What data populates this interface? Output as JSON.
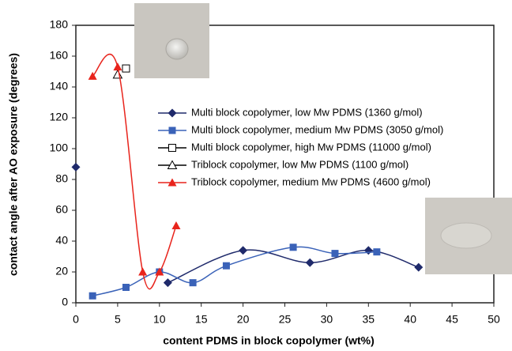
{
  "chart_data": {
    "type": "line",
    "x_label": "content PDMS in block copolymer (wt%)",
    "y_label": "contact angle after AO exposure (degrees)",
    "xlim": [
      0,
      50
    ],
    "xticks": [
      0,
      5,
      10,
      15,
      20,
      25,
      30,
      35,
      40,
      45,
      50
    ],
    "ylim": [
      0,
      180
    ],
    "yticks": [
      0,
      20,
      40,
      60,
      80,
      100,
      120,
      140,
      160,
      180
    ],
    "smooth": true,
    "series": [
      {
        "name": "Multi block copolymer, low Mw PDMS (1360 g/mol)",
        "color": "#1f2a6b",
        "marker": "diamond",
        "line": true,
        "x": [
          0,
          null,
          11,
          20,
          28,
          35,
          41
        ],
        "values": [
          88,
          null,
          13,
          34,
          26,
          34,
          23
        ]
      },
      {
        "name": "Multi block copolymer, medium Mw PDMS (3050 g/mol)",
        "color": "#3a62b8",
        "marker": "square",
        "line": true,
        "x": [
          2,
          6,
          10,
          14,
          18,
          26,
          31,
          36
        ],
        "values": [
          4.5,
          10,
          20,
          13,
          24,
          36,
          32,
          33
        ]
      },
      {
        "name": "Multi block copolymer, high Mw PDMS (11000 g/mol)",
        "color": "#000000",
        "marker": "open-square",
        "line": false,
        "x": [
          6
        ],
        "values": [
          152
        ]
      },
      {
        "name": "Triblock copolymer, low Mw PDMS (1100 g/mol)",
        "color": "#000000",
        "marker": "open-triangle",
        "line": false,
        "x": [
          5
        ],
        "values": [
          148
        ]
      },
      {
        "name": "Triblock copolymer, medium Mw PDMS (4600 g/mol)",
        "color": "#e8241c",
        "marker": "triangle",
        "line": true,
        "x": [
          2,
          5,
          8,
          10,
          12
        ],
        "values": [
          147,
          153,
          20,
          20,
          50
        ]
      }
    ]
  }
}
